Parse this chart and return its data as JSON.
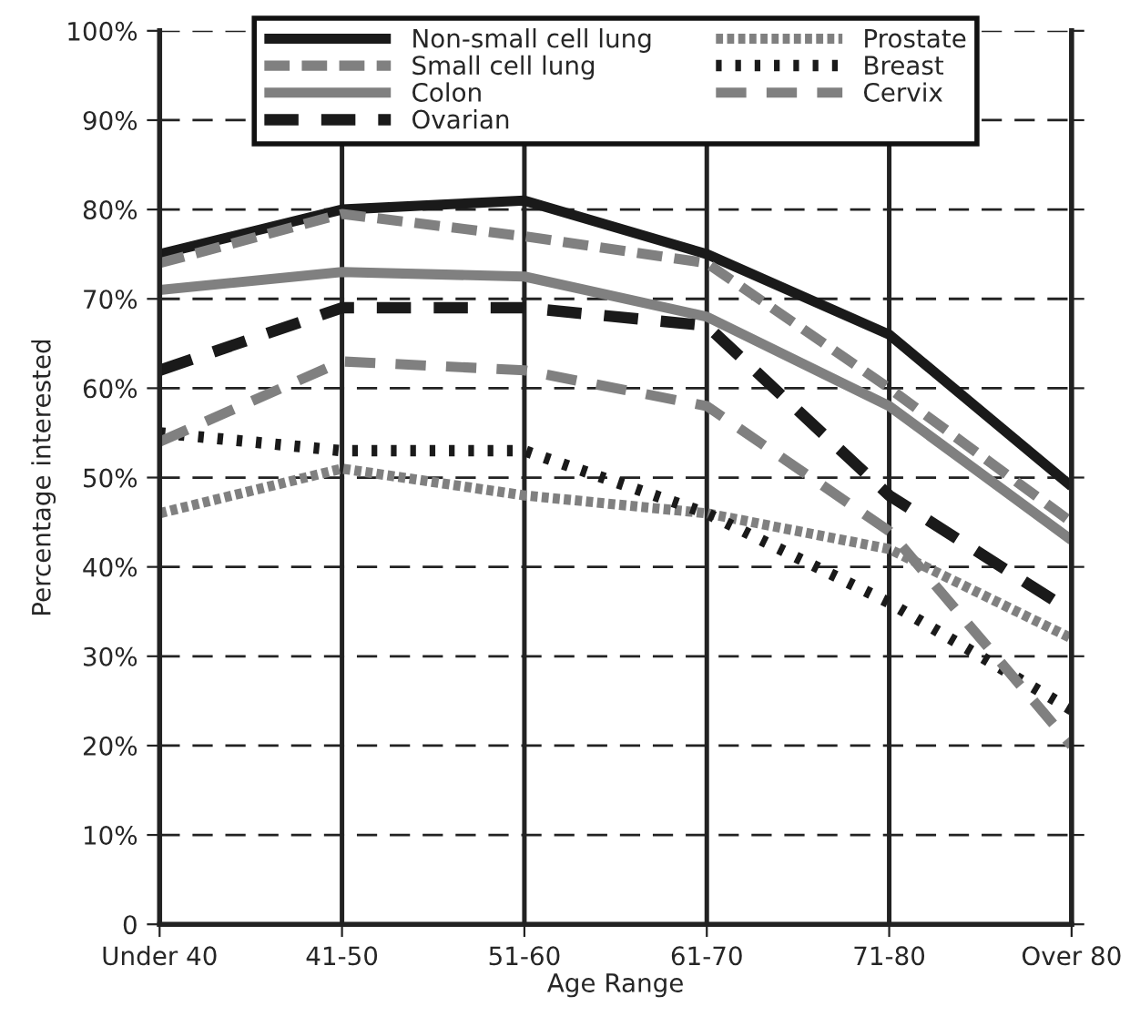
{
  "chart_data": {
    "type": "line",
    "xlabel": "Age Range",
    "ylabel": "Percentage interested",
    "categories": [
      "Under 40",
      "41-50",
      "51-60",
      "61-70",
      "71-80",
      "Over 80"
    ],
    "series": [
      {
        "name": "Non-small cell lung",
        "color": "#1a1a1a",
        "line_style": "solid",
        "values": [
          75,
          80,
          81,
          75,
          66,
          49
        ]
      },
      {
        "name": "Small cell lung",
        "color": "#808080",
        "line_style": "dashed",
        "values": [
          74,
          79.5,
          77,
          74,
          60,
          45
        ]
      },
      {
        "name": "Colon",
        "color": "#808080",
        "line_style": "solid",
        "values": [
          71,
          73,
          72.5,
          68,
          58,
          43
        ]
      },
      {
        "name": "Ovarian",
        "color": "#1a1a1a",
        "line_style": "dashed",
        "values": [
          62,
          69,
          69,
          67,
          48,
          35
        ]
      },
      {
        "name": "Prostate",
        "color": "#808080",
        "line_style": "dotted",
        "values": [
          46,
          51,
          48,
          46,
          42,
          32
        ]
      },
      {
        "name": "Breast",
        "color": "#1a1a1a",
        "line_style": "dotted",
        "values": [
          55,
          53,
          53,
          46,
          36,
          24
        ]
      },
      {
        "name": "Cervix",
        "color": "#808080",
        "line_style": "dashed",
        "values": [
          54,
          63,
          62,
          58,
          44,
          20
        ]
      }
    ],
    "ylim": [
      0,
      100
    ],
    "yticks": [
      {
        "value": 0,
        "label": "0"
      },
      {
        "value": 10,
        "label": "10%"
      },
      {
        "value": 20,
        "label": "20%"
      },
      {
        "value": 30,
        "label": "30%"
      },
      {
        "value": 40,
        "label": "40%"
      },
      {
        "value": 50,
        "label": "50%"
      },
      {
        "value": 60,
        "label": "60%"
      },
      {
        "value": 70,
        "label": "70%"
      },
      {
        "value": 80,
        "label": "80%"
      },
      {
        "value": 90,
        "label": "90%"
      },
      {
        "value": 100,
        "label": "100%"
      }
    ],
    "grid": true,
    "legend": "top",
    "marker": "none"
  }
}
